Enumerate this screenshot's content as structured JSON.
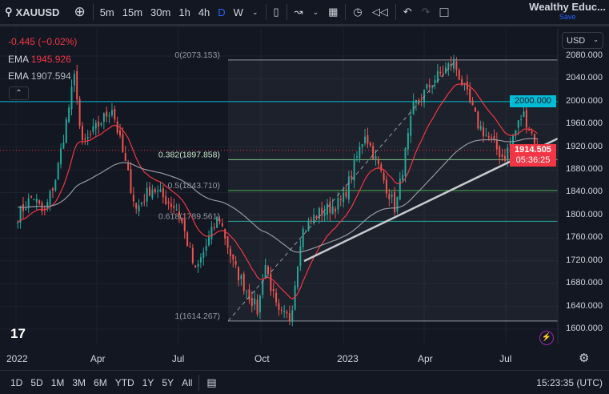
{
  "toolbar": {
    "symbol": "XAUUSD",
    "intervals": [
      "5m",
      "15m",
      "30m",
      "1h",
      "4h",
      "D",
      "W"
    ],
    "active_interval": "D",
    "layout_name": "Wealthy Educ...",
    "save_label": "Save"
  },
  "legend": {
    "change": "-0.445 (−0.02%)",
    "ema1_label": "EMA",
    "ema1_value": "1945.926",
    "ema2_label": "EMA",
    "ema2_value": "1907.594"
  },
  "currency": "USD",
  "colors": {
    "up": "#26a69a",
    "down": "#ef5350",
    "ema_fast": "#f23645",
    "ema_slow": "#9598a1",
    "hline": "#22ab94",
    "price_tag": "#f23645",
    "level_line": "#00bcd4"
  },
  "chart_data": {
    "type": "candlestick",
    "y_ticks": [
      "2080.000",
      "2040.000",
      "2000.000",
      "1960.000",
      "1920.000",
      "1880.000",
      "1840.000",
      "1800.000",
      "1760.000",
      "1720.000",
      "1680.000",
      "1640.000",
      "1600.000"
    ],
    "ylim": [
      1600,
      2080
    ],
    "x_ticks": [
      "2022",
      "Apr",
      "Jul",
      "Oct",
      "2023",
      "Apr",
      "Jul"
    ],
    "approx_close_path": [
      [
        "2022-01-03",
        1800
      ],
      [
        "2022-01-20",
        1835
      ],
      [
        "2022-02-01",
        1800
      ],
      [
        "2022-02-15",
        1870
      ],
      [
        "2022-03-08",
        2050
      ],
      [
        "2022-03-15",
        1920
      ],
      [
        "2022-04-18",
        1990
      ],
      [
        "2022-05-15",
        1810
      ],
      [
        "2022-06-01",
        1850
      ],
      [
        "2022-06-15",
        1830
      ],
      [
        "2022-07-01",
        1810
      ],
      [
        "2022-07-20",
        1700
      ],
      [
        "2022-08-15",
        1800
      ],
      [
        "2022-09-01",
        1710
      ],
      [
        "2022-09-28",
        1630
      ],
      [
        "2022-10-05",
        1720
      ],
      [
        "2022-10-20",
        1625
      ],
      [
        "2022-11-03",
        1620
      ],
      [
        "2022-11-15",
        1770
      ],
      [
        "2022-12-01",
        1800
      ],
      [
        "2022-12-31",
        1825
      ],
      [
        "2023-01-25",
        1945
      ],
      [
        "2023-02-28",
        1810
      ],
      [
        "2023-03-20",
        1990
      ],
      [
        "2023-04-13",
        2040
      ],
      [
        "2023-05-04",
        2070
      ],
      [
        "2023-05-31",
        1960
      ],
      [
        "2023-06-29",
        1900
      ],
      [
        "2023-07-20",
        1980
      ],
      [
        "2023-08-07",
        1914.5
      ]
    ],
    "fib_levels": [
      {
        "label": "0(2073.153)",
        "value": 2073.153
      },
      {
        "label": "0.382(1897.858)",
        "value": 1897.858
      },
      {
        "label": "0.5(1843.710)",
        "value": 1843.71
      },
      {
        "label": "0.618(1789.561)",
        "value": 1789.561
      },
      {
        "label": "1(1614.267)",
        "value": 1614.267
      }
    ],
    "horizontal_level": {
      "label": "2000.000",
      "value": 2000
    },
    "last_price": {
      "label": "1914.505",
      "countdown": "05:36:25",
      "value": 1914.505
    }
  },
  "bottombar": {
    "ranges": [
      "1D",
      "5D",
      "1M",
      "3M",
      "6M",
      "YTD",
      "1Y",
      "5Y",
      "All"
    ],
    "time": "15:23:35 (UTC)"
  }
}
